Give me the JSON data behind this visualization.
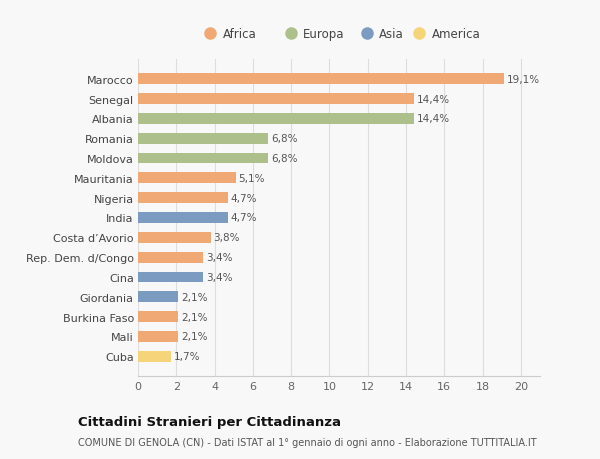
{
  "categories": [
    "Marocco",
    "Senegal",
    "Albania",
    "Romania",
    "Moldova",
    "Mauritania",
    "Nigeria",
    "India",
    "Costa d’Avorio",
    "Rep. Dem. d/Congo",
    "Cina",
    "Giordania",
    "Burkina Faso",
    "Mali",
    "Cuba"
  ],
  "values": [
    19.1,
    14.4,
    14.4,
    6.8,
    6.8,
    5.1,
    4.7,
    4.7,
    3.8,
    3.4,
    3.4,
    2.1,
    2.1,
    2.1,
    1.7
  ],
  "labels": [
    "19,1%",
    "14,4%",
    "14,4%",
    "6,8%",
    "6,8%",
    "5,1%",
    "4,7%",
    "4,7%",
    "3,8%",
    "3,4%",
    "3,4%",
    "2,1%",
    "2,1%",
    "2,1%",
    "1,7%"
  ],
  "continents": [
    "Africa",
    "Africa",
    "Europa",
    "Europa",
    "Europa",
    "Africa",
    "Africa",
    "Asia",
    "Africa",
    "Africa",
    "Asia",
    "Asia",
    "Africa",
    "Africa",
    "America"
  ],
  "continent_colors": {
    "Africa": "#F0A875",
    "Europa": "#ADBF8A",
    "Asia": "#7B9CC0",
    "America": "#F5D47A"
  },
  "legend_order": [
    "Africa",
    "Europa",
    "Asia",
    "America"
  ],
  "title": "Cittadini Stranieri per Cittadinanza",
  "subtitle": "COMUNE DI GENOLA (CN) - Dati ISTAT al 1° gennaio di ogni anno - Elaborazione TUTTITALIA.IT",
  "xlim": [
    0,
    21
  ],
  "xticks": [
    0,
    2,
    4,
    6,
    8,
    10,
    12,
    14,
    16,
    18,
    20
  ],
  "background_color": "#f8f8f8",
  "grid_color": "#dddddd"
}
